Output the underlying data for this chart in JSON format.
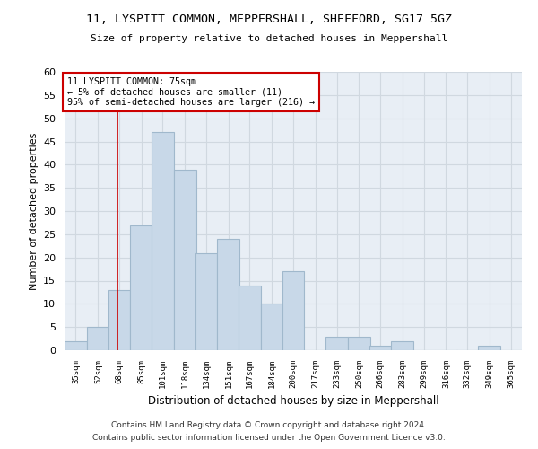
{
  "title_line1": "11, LYSPITT COMMON, MEPPERSHALL, SHEFFORD, SG17 5GZ",
  "title_line2": "Size of property relative to detached houses in Meppershall",
  "xlabel": "Distribution of detached houses by size in Meppershall",
  "ylabel": "Number of detached properties",
  "categories": [
    "35sqm",
    "52sqm",
    "68sqm",
    "85sqm",
    "101sqm",
    "118sqm",
    "134sqm",
    "151sqm",
    "167sqm",
    "184sqm",
    "200sqm",
    "217sqm",
    "233sqm",
    "250sqm",
    "266sqm",
    "283sqm",
    "299sqm",
    "316sqm",
    "332sqm",
    "349sqm",
    "365sqm"
  ],
  "values": [
    2,
    5,
    13,
    27,
    47,
    39,
    21,
    24,
    14,
    10,
    17,
    0,
    3,
    3,
    1,
    2,
    0,
    0,
    0,
    1,
    0
  ],
  "bar_color": "#c8d8e8",
  "bar_edge_color": "#a0b8cc",
  "bar_linewidth": 0.8,
  "grid_color": "#d0d8e0",
  "bg_color": "#e8eef5",
  "annotation_text": "11 LYSPITT COMMON: 75sqm\n← 5% of detached houses are smaller (11)\n95% of semi-detached houses are larger (216) →",
  "annotation_box_color": "#ffffff",
  "annotation_box_edge_color": "#cc0000",
  "vline_x": 75,
  "vline_color": "#cc0000",
  "vline_linewidth": 1.2,
  "ylim": [
    0,
    60
  ],
  "yticks": [
    0,
    5,
    10,
    15,
    20,
    25,
    30,
    35,
    40,
    45,
    50,
    55,
    60
  ],
  "footnote1": "Contains HM Land Registry data © Crown copyright and database right 2024.",
  "footnote2": "Contains public sector information licensed under the Open Government Licence v3.0.",
  "bin_width": 17
}
